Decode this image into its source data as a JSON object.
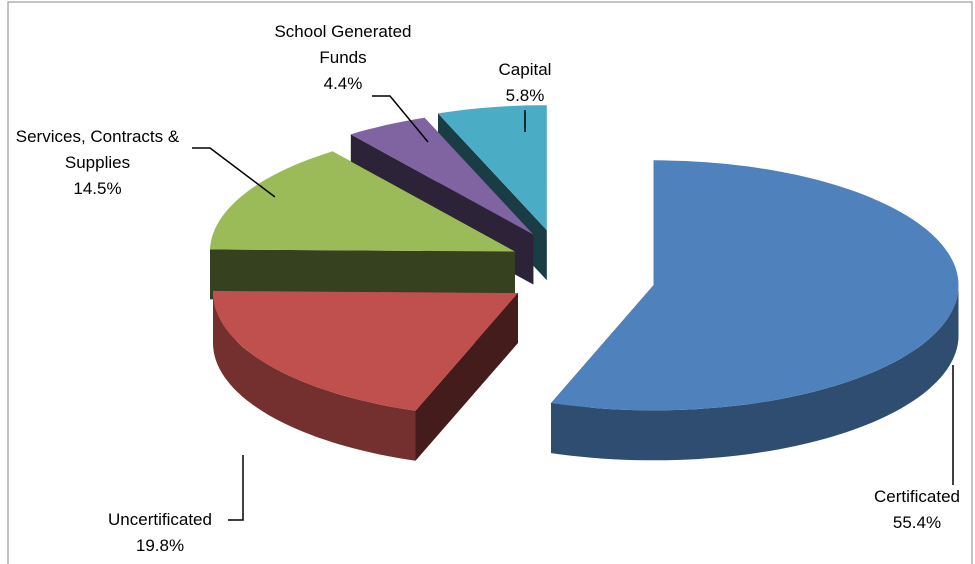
{
  "chart_data": {
    "type": "pie",
    "categories": [
      "Certificated",
      "Uncertificated",
      "Services, Contracts & Supplies",
      "School Generated Funds",
      "Capital"
    ],
    "values": [
      55.4,
      19.8,
      14.5,
      4.4,
      5.8
    ],
    "value_labels": [
      "55.4%",
      "19.8%",
      "14.5%",
      "4.4%",
      "5.8%"
    ],
    "colors": [
      "#4f81bd",
      "#c0504d",
      "#9bbb59",
      "#8064a2",
      "#4bacc6"
    ]
  }
}
